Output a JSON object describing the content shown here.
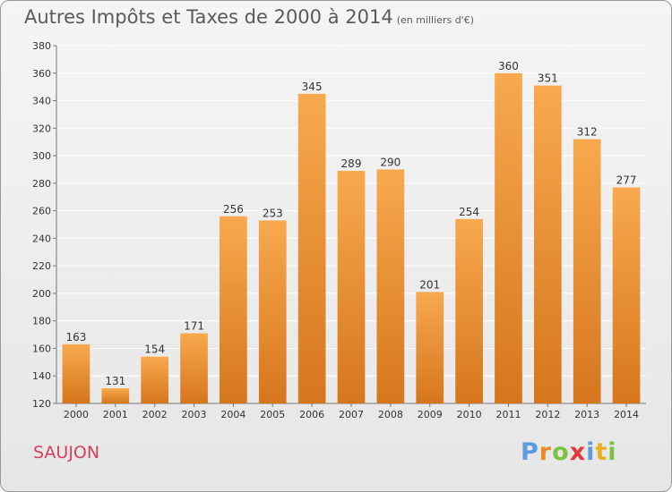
{
  "header": {
    "title": "Autres Impôts et Taxes de 2000 à 2014",
    "unit": "(en milliers d'€)"
  },
  "footer": {
    "commune": "SAUJON",
    "logo_text": "Proxiti"
  },
  "colors": {
    "bar_light": "#f8a94e",
    "bar_dark": "#d6761c",
    "grid": "#ffffff"
  },
  "chart_data": {
    "type": "bar",
    "title": "Autres Impôts et Taxes de 2000 à 2014",
    "subtitle": "(en milliers d'€)",
    "xlabel": "",
    "ylabel": "",
    "categories": [
      "2000",
      "2001",
      "2002",
      "2003",
      "2004",
      "2005",
      "2006",
      "2007",
      "2008",
      "2009",
      "2010",
      "2011",
      "2012",
      "2013",
      "2014"
    ],
    "values": [
      163,
      131,
      154,
      171,
      256,
      253,
      345,
      289,
      290,
      201,
      254,
      360,
      351,
      312,
      277
    ],
    "ylim": [
      120,
      380
    ],
    "yticks": [
      120,
      140,
      160,
      180,
      200,
      220,
      240,
      260,
      280,
      300,
      320,
      340,
      360,
      380
    ],
    "grid": true
  }
}
